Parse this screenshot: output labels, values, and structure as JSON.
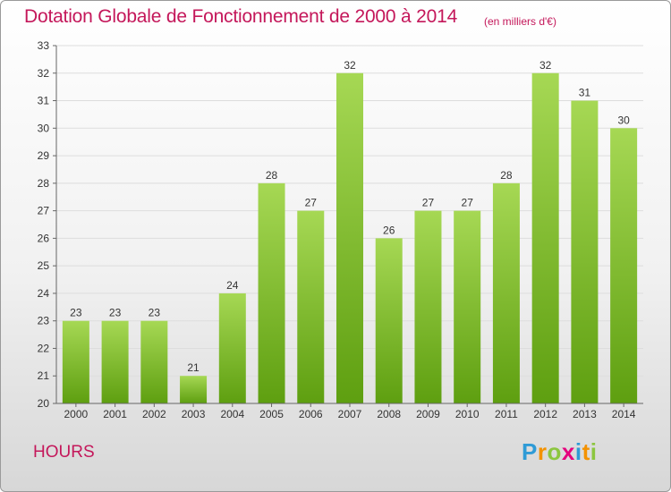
{
  "colors": {
    "title": "#c4175a",
    "bar_light": "#a6d854",
    "bar_dark": "#5e9f10",
    "grid": "#dddddd",
    "axis": "#666666"
  },
  "page": {
    "title": "Dotation Globale de Fonctionnement de 2000 à 2014",
    "unit": "(en milliers d'€)",
    "commune": "HOURS",
    "logo": [
      "P",
      "r",
      "o",
      "x",
      "i",
      "t",
      "i"
    ],
    "logo_colors": [
      "#2f9bd6",
      "#f39200",
      "#8cc63f",
      "#e5007d",
      "#2f9bd6",
      "#f39200",
      "#8cc63f"
    ]
  },
  "chart_data": {
    "type": "bar",
    "title": "Dotation Globale de Fonctionnement de 2000 à 2014",
    "unit": "(en milliers d'€)",
    "categories": [
      "2000",
      "2001",
      "2002",
      "2003",
      "2004",
      "2005",
      "2006",
      "2007",
      "2008",
      "2009",
      "2010",
      "2011",
      "2012",
      "2013",
      "2014"
    ],
    "values": [
      23,
      23,
      23,
      21,
      24,
      28,
      27,
      32,
      26,
      27,
      27,
      28,
      32,
      31,
      30
    ],
    "ylim": [
      20,
      33
    ],
    "yticks": [
      20,
      21,
      22,
      23,
      24,
      25,
      26,
      27,
      28,
      29,
      30,
      31,
      32,
      33
    ],
    "grid": true,
    "data_labels": true,
    "xlabel": "",
    "ylabel": ""
  }
}
